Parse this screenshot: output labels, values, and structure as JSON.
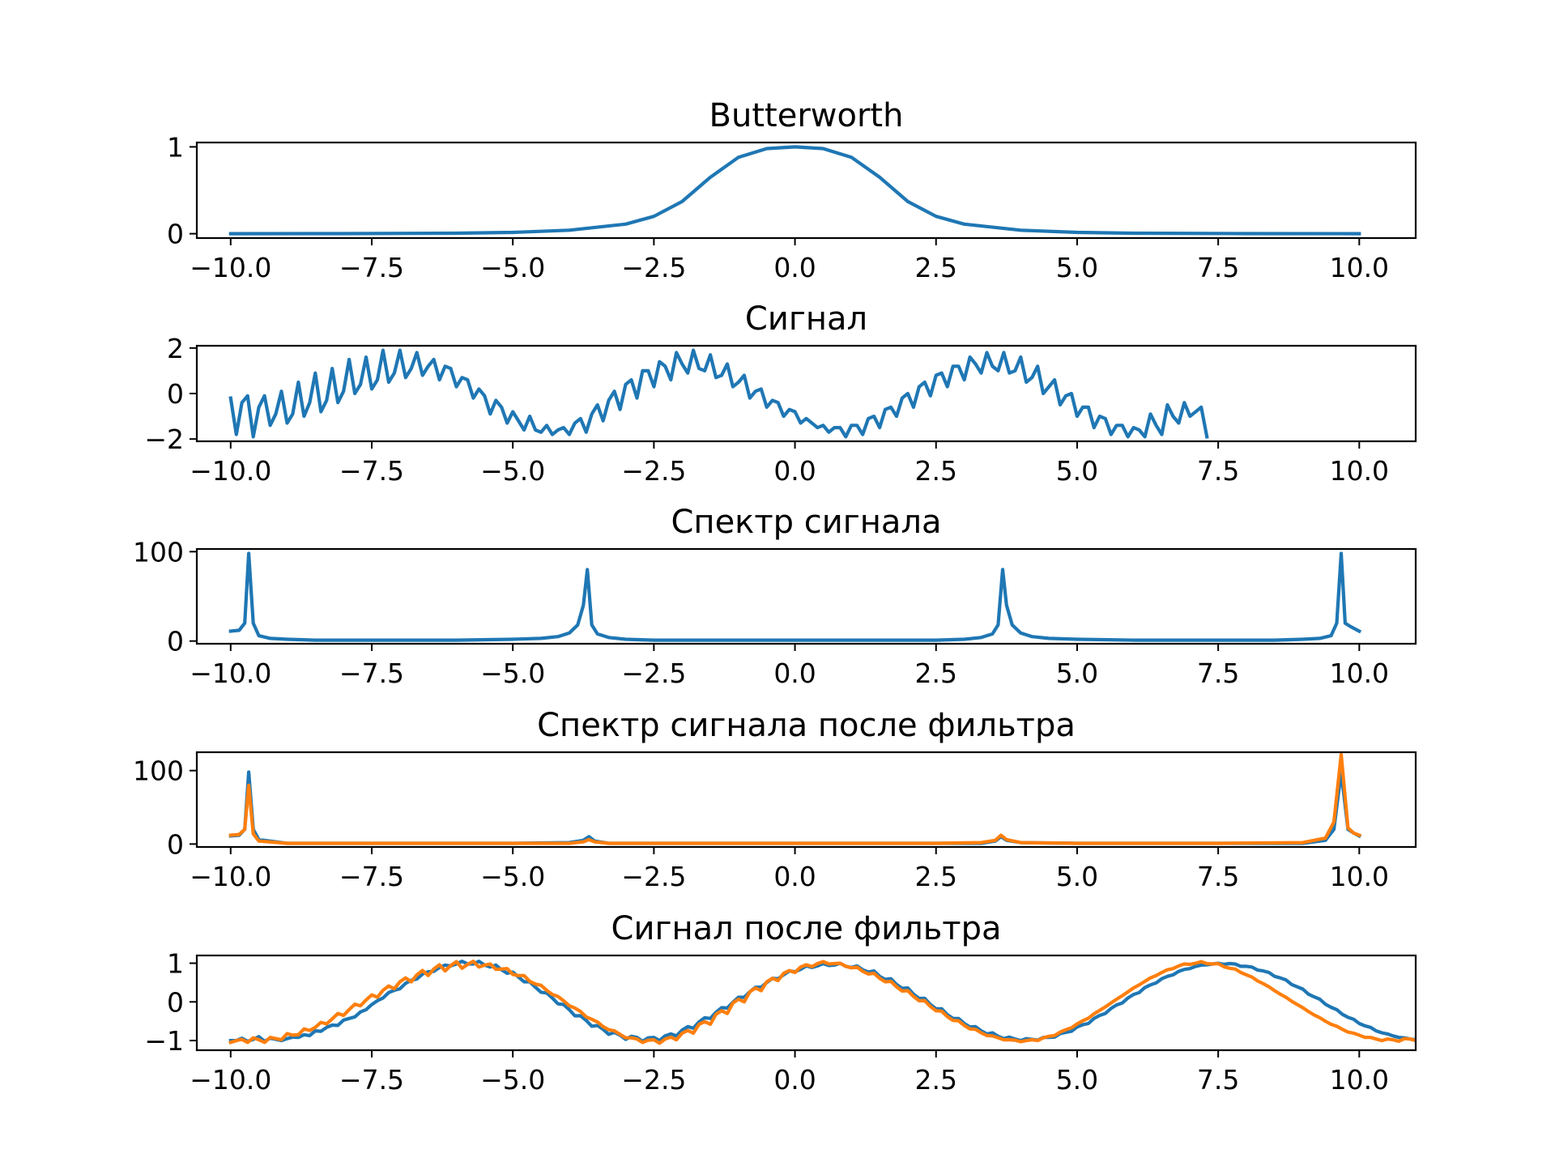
{
  "colors": {
    "blue": "#1f77b4",
    "orange": "#ff7f0e"
  },
  "chart_data": [
    {
      "type": "line",
      "title": "Butterworth",
      "xlim": [
        -10.6,
        11.0
      ],
      "ylim": [
        -0.05,
        1.05
      ],
      "xticks": [
        -10.0,
        -7.5,
        -5.0,
        -2.5,
        0.0,
        2.5,
        5.0,
        7.5,
        10.0
      ],
      "xtick_labels": [
        "−10.0",
        "−7.5",
        "−5.0",
        "−2.5",
        "0.0",
        "2.5",
        "5.0",
        "7.5",
        "10.0"
      ],
      "yticks": [
        0,
        1
      ],
      "ytick_labels": [
        "0",
        "1"
      ],
      "series": [
        {
          "color": "blue",
          "x": [
            -10,
            -8,
            -6,
            -5,
            -4,
            -3,
            -2.5,
            -2,
            -1.5,
            -1,
            -0.5,
            0,
            0.5,
            1,
            1.5,
            2,
            2.5,
            3,
            4,
            5,
            6,
            8,
            10
          ],
          "y": [
            0.0,
            0.001,
            0.006,
            0.015,
            0.04,
            0.11,
            0.2,
            0.37,
            0.65,
            0.88,
            0.98,
            1.0,
            0.98,
            0.88,
            0.65,
            0.37,
            0.2,
            0.11,
            0.04,
            0.015,
            0.006,
            0.001,
            0.0
          ]
        }
      ]
    },
    {
      "type": "line",
      "title": "Сигнал",
      "xlim": [
        -10.6,
        11.0
      ],
      "ylim": [
        -2.1,
        2.1
      ],
      "xticks": [
        -10.0,
        -7.5,
        -5.0,
        -2.5,
        0.0,
        2.5,
        5.0,
        7.5,
        10.0
      ],
      "xtick_labels": [
        "−10.0",
        "−7.5",
        "−5.0",
        "−2.5",
        "0.0",
        "2.5",
        "5.0",
        "7.5",
        "10.0"
      ],
      "yticks": [
        -2,
        0,
        2
      ],
      "ytick_labels": [
        "−2",
        "0",
        "2"
      ],
      "series": [
        {
          "color": "blue",
          "x_start": -10.0,
          "x_step": 0.1,
          "y": [
            -0.2,
            -1.8,
            -0.4,
            -0.1,
            -1.9,
            -0.6,
            -0.1,
            -1.4,
            -0.9,
            0.1,
            -1.3,
            -0.9,
            0.5,
            -1.0,
            -0.4,
            0.9,
            -0.8,
            -0.3,
            1.1,
            -0.4,
            0.1,
            1.5,
            0.0,
            0.4,
            1.6,
            0.2,
            0.6,
            1.9,
            0.5,
            0.9,
            1.9,
            0.7,
            1.1,
            1.8,
            0.8,
            1.2,
            1.5,
            0.6,
            1.2,
            1.1,
            0.3,
            0.7,
            0.6,
            -0.2,
            0.2,
            -0.1,
            -0.9,
            -0.3,
            -0.6,
            -1.3,
            -0.8,
            -1.2,
            -1.6,
            -1.0,
            -1.6,
            -1.7,
            -1.4,
            -1.8,
            -1.6,
            -1.5,
            -1.8,
            -1.3,
            -1.1,
            -1.7,
            -0.9,
            -0.5,
            -1.2,
            -0.3,
            0.1,
            -0.7,
            0.4,
            0.6,
            -0.2,
            1.0,
            1.0,
            0.3,
            1.4,
            1.2,
            0.6,
            1.8,
            1.3,
            0.9,
            1.9,
            1.1,
            1.0,
            1.7,
            0.7,
            0.8,
            1.3,
            0.3,
            0.5,
            0.8,
            -0.2,
            0.1,
            0.2,
            -0.6,
            -0.3,
            -0.4,
            -1.0,
            -0.7,
            -0.8,
            -1.3,
            -1.1,
            -1.3,
            -1.5,
            -1.4,
            -1.7,
            -1.5,
            -1.5,
            -1.9,
            -1.4,
            -1.4,
            -1.8,
            -1.1,
            -1.0,
            -1.5,
            -0.7,
            -0.6,
            -1.0,
            -0.2,
            0.0,
            -0.6,
            0.3,
            0.5,
            -0.1,
            0.8,
            0.9,
            0.3,
            1.2,
            1.2,
            0.6,
            1.6,
            1.3,
            0.9,
            1.8,
            1.2,
            1.0,
            1.8,
            0.9,
            1.0,
            1.6,
            0.5,
            0.7,
            1.2,
            0.0,
            0.3,
            0.6,
            -0.5,
            -0.1,
            0.0,
            -1.0,
            -0.6,
            -0.6,
            -1.5,
            -1.0,
            -1.1,
            -1.8,
            -1.4,
            -1.4,
            -1.9,
            -1.5,
            -1.6,
            -1.9,
            -0.9,
            -1.4,
            -1.8,
            -0.5,
            -1.0,
            -1.3,
            -0.4,
            -1.0,
            -0.8,
            -0.6,
            -1.9
          ]
        }
      ]
    },
    {
      "type": "line",
      "title": "Спектр сигнала",
      "xlim": [
        -10.6,
        11.0
      ],
      "ylim": [
        -3,
        103
      ],
      "xticks": [
        -10.0,
        -7.5,
        -5.0,
        -2.5,
        0.0,
        2.5,
        5.0,
        7.5,
        10.0
      ],
      "xtick_labels": [
        "−10.0",
        "−7.5",
        "−5.0",
        "−2.5",
        "0.0",
        "2.5",
        "5.0",
        "7.5",
        "10.0"
      ],
      "yticks": [
        0,
        100
      ],
      "ytick_labels": [
        "0",
        "100"
      ],
      "series": [
        {
          "color": "blue",
          "x": [
            -10.0,
            -9.85,
            -9.75,
            -9.68,
            -9.6,
            -9.5,
            -9.3,
            -9.0,
            -8.5,
            -7.5,
            -6.0,
            -5.0,
            -4.5,
            -4.2,
            -4.0,
            -3.85,
            -3.75,
            -3.68,
            -3.6,
            -3.5,
            -3.3,
            -3.0,
            -2.5,
            -1.0,
            0.0,
            1.0,
            2.5,
            3.0,
            3.3,
            3.5,
            3.6,
            3.68,
            3.75,
            3.85,
            4.0,
            4.2,
            4.5,
            5.0,
            6.0,
            7.5,
            8.5,
            9.0,
            9.3,
            9.5,
            9.6,
            9.68,
            9.75,
            9.85,
            10.0
          ],
          "y": [
            11,
            12,
            20,
            98,
            20,
            6,
            3,
            2,
            1,
            1,
            1,
            2,
            3,
            5,
            9,
            18,
            40,
            80,
            18,
            8,
            4,
            2,
            1,
            1,
            1,
            1,
            1,
            2,
            4,
            8,
            18,
            80,
            40,
            18,
            9,
            5,
            3,
            2,
            1,
            1,
            1,
            2,
            3,
            6,
            20,
            98,
            20,
            16,
            11
          ]
        }
      ]
    },
    {
      "type": "line",
      "title": "Спектр сигнала после фильтра",
      "xlim": [
        -10.6,
        11.0
      ],
      "ylim": [
        -4,
        125
      ],
      "xticks": [
        -10.0,
        -7.5,
        -5.0,
        -2.5,
        0.0,
        2.5,
        5.0,
        7.5,
        10.0
      ],
      "xtick_labels": [
        "−10.0",
        "−7.5",
        "−5.0",
        "−2.5",
        "0.0",
        "2.5",
        "5.0",
        "7.5",
        "10.0"
      ],
      "yticks": [
        0,
        100
      ],
      "ytick_labels": [
        "0",
        "100"
      ],
      "series": [
        {
          "color": "blue",
          "x": [
            -10.0,
            -9.85,
            -9.75,
            -9.68,
            -9.6,
            -9.5,
            -9.0,
            -7.5,
            -5.0,
            -4.0,
            -3.75,
            -3.65,
            -3.55,
            -3.3,
            -2.5,
            0.0,
            2.5,
            3.3,
            3.55,
            3.65,
            3.75,
            4.0,
            5.0,
            7.5,
            9.0,
            9.4,
            9.55,
            9.68,
            9.8,
            9.9,
            10.0
          ],
          "y": [
            11,
            12,
            20,
            98,
            20,
            6,
            1,
            1,
            1,
            2,
            5,
            10,
            4,
            1,
            1,
            1,
            1,
            1,
            4,
            10,
            5,
            2,
            1,
            1,
            1,
            5,
            20,
            98,
            20,
            15,
            11
          ]
        },
        {
          "color": "orange",
          "x": [
            -10.0,
            -9.85,
            -9.75,
            -9.68,
            -9.6,
            -9.5,
            -9.0,
            -7.5,
            -5.0,
            -4.0,
            -3.75,
            -3.65,
            -3.55,
            -3.3,
            -2.5,
            0.0,
            2.5,
            3.3,
            3.55,
            3.65,
            3.75,
            4.0,
            5.0,
            7.5,
            9.0,
            9.4,
            9.55,
            9.68,
            9.8,
            9.9,
            10.0
          ],
          "y": [
            12,
            13,
            20,
            80,
            14,
            4,
            1,
            1,
            1,
            1,
            3,
            6,
            3,
            1,
            1,
            1,
            1,
            2,
            5,
            12,
            6,
            2,
            1,
            1,
            2,
            8,
            30,
            122,
            22,
            15,
            12
          ]
        }
      ]
    },
    {
      "type": "line",
      "title": "Сигнал после фильтра",
      "xlim": [
        -10.6,
        11.0
      ],
      "ylim": [
        -1.25,
        1.2
      ],
      "xticks": [
        -10.0,
        -7.5,
        -5.0,
        -2.5,
        0.0,
        2.5,
        5.0,
        7.5,
        10.0
      ],
      "xtick_labels": [
        "−10.0",
        "−7.5",
        "−5.0",
        "−2.5",
        "0.0",
        "2.5",
        "5.0",
        "7.5",
        "10.0"
      ],
      "yticks": [
        -1,
        0,
        1
      ],
      "ytick_labels": [
        "−1",
        "0",
        "1"
      ],
      "series": [
        {
          "color": "blue",
          "x_start": -10.0,
          "x_step": 0.1,
          "y": [
            -1.0,
            -1.0,
            -0.94,
            -1.02,
            -0.97,
            -0.9,
            -1.02,
            -0.94,
            -0.97,
            -1.0,
            -0.95,
            -0.91,
            -0.92,
            -0.85,
            -0.87,
            -0.75,
            -0.76,
            -0.66,
            -0.6,
            -0.61,
            -0.47,
            -0.43,
            -0.39,
            -0.26,
            -0.2,
            -0.07,
            0.03,
            0.1,
            0.24,
            0.3,
            0.34,
            0.48,
            0.56,
            0.59,
            0.72,
            0.78,
            0.79,
            0.89,
            0.95,
            0.93,
            0.98,
            1.05,
            0.98,
            0.98,
            1.05,
            0.95,
            0.9,
            0.95,
            0.83,
            0.74,
            0.77,
            0.64,
            0.52,
            0.52,
            0.38,
            0.25,
            0.23,
            0.1,
            -0.05,
            -0.07,
            -0.2,
            -0.36,
            -0.36,
            -0.48,
            -0.63,
            -0.61,
            -0.71,
            -0.84,
            -0.79,
            -0.86,
            -0.97,
            -0.89,
            -0.92,
            -1.02,
            -0.93,
            -0.92,
            -1.0,
            -0.88,
            -0.83,
            -0.88,
            -0.73,
            -0.64,
            -0.68,
            -0.52,
            -0.41,
            -0.43,
            -0.27,
            -0.15,
            -0.16,
            -0.01,
            0.12,
            0.12,
            0.26,
            0.38,
            0.38,
            0.5,
            0.61,
            0.6,
            0.7,
            0.8,
            0.78,
            0.84,
            0.93,
            0.89,
            0.93,
            0.99,
            0.94,
            0.95,
            1.0,
            0.92,
            0.89,
            0.93,
            0.83,
            0.77,
            0.8,
            0.66,
            0.58,
            0.6,
            0.45,
            0.35,
            0.36,
            0.2,
            0.09,
            0.09,
            -0.07,
            -0.18,
            -0.18,
            -0.33,
            -0.43,
            -0.43,
            -0.56,
            -0.65,
            -0.64,
            -0.75,
            -0.83,
            -0.8,
            -0.89,
            -0.95,
            -0.91,
            -0.96,
            -1.0,
            -0.95,
            -0.97,
            -0.99,
            -0.92,
            -0.92,
            -0.91,
            -0.82,
            -0.79,
            -0.76,
            -0.65,
            -0.59,
            -0.56,
            -0.43,
            -0.35,
            -0.3,
            -0.17,
            -0.08,
            -0.03,
            0.1,
            0.19,
            0.24,
            0.37,
            0.44,
            0.49,
            0.6,
            0.66,
            0.7,
            0.79,
            0.84,
            0.86,
            0.92,
            0.95,
            0.96,
            0.98,
            1.0,
            0.97,
            0.99,
            0.98,
            0.92,
            0.92,
            0.9,
            0.82,
            0.8,
            0.76,
            0.66,
            0.62,
            0.57,
            0.45,
            0.39,
            0.33,
            0.2,
            0.13,
            0.07,
            -0.06,
            -0.14,
            -0.2,
            -0.32,
            -0.4,
            -0.45,
            -0.56,
            -0.62,
            -0.66,
            -0.75,
            -0.8,
            -0.83,
            -0.88,
            -0.92,
            -0.93,
            -0.96,
            -0.98,
            -0.97,
            -0.97,
            -0.97,
            -0.94,
            -0.92,
            -0.92,
            -0.87,
            -0.9
          ]
        },
        {
          "color": "orange",
          "x_start": -10.0,
          "x_step": 0.1,
          "y": [
            -1.05,
            -1.0,
            -0.97,
            -1.05,
            -0.93,
            -0.98,
            -1.05,
            -0.92,
            -0.95,
            -0.98,
            -0.82,
            -0.86,
            -0.85,
            -0.7,
            -0.74,
            -0.66,
            -0.53,
            -0.57,
            -0.44,
            -0.3,
            -0.35,
            -0.2,
            -0.06,
            -0.1,
            0.05,
            0.18,
            0.12,
            0.3,
            0.41,
            0.34,
            0.52,
            0.62,
            0.52,
            0.7,
            0.81,
            0.68,
            0.85,
            0.96,
            0.8,
            0.94,
            1.04,
            0.87,
            0.97,
            1.05,
            0.9,
            0.95,
            0.98,
            0.84,
            0.85,
            0.86,
            0.71,
            0.68,
            0.68,
            0.53,
            0.46,
            0.43,
            0.3,
            0.19,
            0.14,
            0.03,
            -0.1,
            -0.16,
            -0.25,
            -0.39,
            -0.45,
            -0.52,
            -0.64,
            -0.72,
            -0.75,
            -0.84,
            -0.93,
            -0.93,
            -0.96,
            -1.05,
            -0.99,
            -0.98,
            -1.07,
            -0.96,
            -0.91,
            -0.98,
            -0.81,
            -0.74,
            -0.81,
            -0.58,
            -0.51,
            -0.58,
            -0.32,
            -0.23,
            -0.3,
            -0.03,
            0.07,
            0.0,
            0.26,
            0.36,
            0.29,
            0.52,
            0.61,
            0.55,
            0.74,
            0.81,
            0.76,
            0.9,
            0.96,
            0.91,
            0.99,
            1.04,
            0.98,
            0.99,
            1.0,
            0.92,
            0.88,
            0.9,
            0.79,
            0.72,
            0.74,
            0.61,
            0.52,
            0.53,
            0.39,
            0.28,
            0.29,
            0.14,
            0.03,
            0.03,
            -0.12,
            -0.23,
            -0.24,
            -0.38,
            -0.48,
            -0.49,
            -0.61,
            -0.7,
            -0.71,
            -0.8,
            -0.87,
            -0.88,
            -0.93,
            -0.98,
            -0.98,
            -0.99,
            -1.03,
            -1.0,
            -0.98,
            -1.0,
            -0.93,
            -0.89,
            -0.87,
            -0.78,
            -0.72,
            -0.67,
            -0.57,
            -0.49,
            -0.42,
            -0.31,
            -0.22,
            -0.13,
            -0.03,
            0.07,
            0.16,
            0.26,
            0.36,
            0.44,
            0.53,
            0.62,
            0.68,
            0.76,
            0.83,
            0.86,
            0.93,
            0.98,
            0.97,
            1.0,
            1.04,
            0.99,
            0.98,
            0.99,
            0.91,
            0.87,
            0.85,
            0.76,
            0.7,
            0.64,
            0.54,
            0.47,
            0.39,
            0.29,
            0.2,
            0.12,
            0.02,
            -0.07,
            -0.15,
            -0.25,
            -0.34,
            -0.41,
            -0.5,
            -0.58,
            -0.63,
            -0.71,
            -0.78,
            -0.81,
            -0.86,
            -0.92,
            -0.92,
            -0.96,
            -1.0,
            -0.96,
            -0.98,
            -1.02,
            -0.95,
            -0.96,
            -1.0,
            -0.93,
            -0.97,
            -1.05
          ]
        }
      ]
    }
  ]
}
